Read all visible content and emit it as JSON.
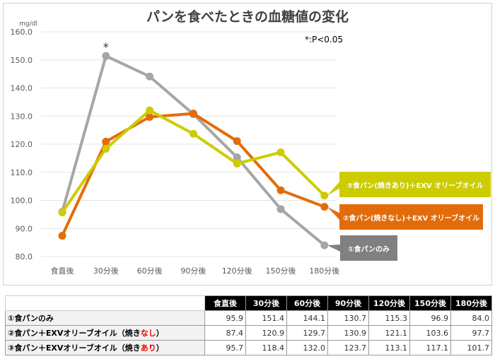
{
  "chart_data": {
    "type": "line",
    "title": "パンを食べたときの血糖値の変化",
    "ylabel": "mg/dl",
    "ylim": [
      80,
      160
    ],
    "yticks": [
      "80.0",
      "90.0",
      "100.0",
      "110.0",
      "120.0",
      "130.0",
      "140.0",
      "150.0",
      "160.0"
    ],
    "categories": [
      "食直後",
      "30分後",
      "60分後",
      "90分後",
      "120分後",
      "150分後",
      "180分後"
    ],
    "annotation": "*:P<0.05",
    "significance_marker": "*",
    "grid": true,
    "series": [
      {
        "name": "①食パンのみ",
        "color": "#a6a6a6",
        "label_color": "#808080",
        "values": [
          95.9,
          151.4,
          144.1,
          130.7,
          115.3,
          96.9,
          84.0
        ]
      },
      {
        "name": "②食パン(焼きなし)＋EXV オリーブオイル",
        "color": "#e36c0a",
        "label_color": "#e36c0a",
        "values": [
          87.4,
          120.9,
          129.7,
          130.9,
          121.1,
          103.6,
          97.7
        ]
      },
      {
        "name": "③食パン(焼きあり)＋EXV オリーブオイル",
        "color": "#cccc00",
        "label_color": "#cccc00",
        "values": [
          95.7,
          118.4,
          132.0,
          123.7,
          113.1,
          117.1,
          101.7
        ]
      }
    ]
  },
  "table": {
    "rows": [
      {
        "pre": "①食パンのみ",
        "red": "",
        "post": ""
      },
      {
        "pre": "②食パン＋EXVオリーブオイル（焼き",
        "red": "なし",
        "post": "）"
      },
      {
        "pre": "③食パン＋EXVオリーブオイル（焼き",
        "red": "あり",
        "post": "）"
      }
    ]
  }
}
